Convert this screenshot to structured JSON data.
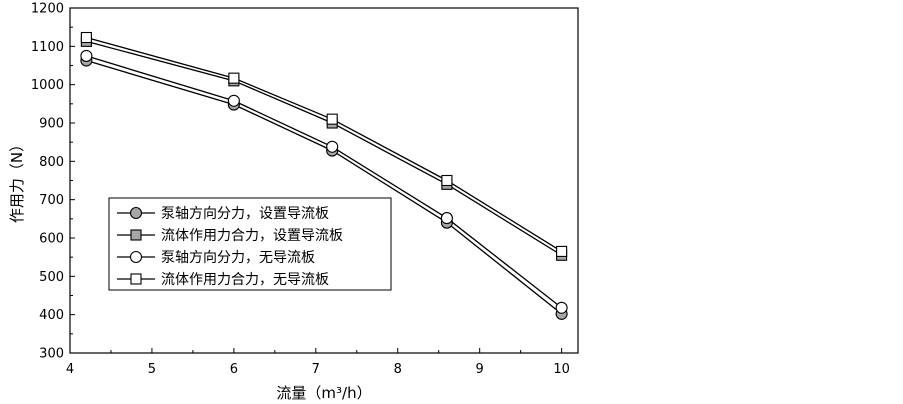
{
  "chart_data": {
    "type": "line",
    "xlabel": "流量（m³/h）",
    "ylabel": "作用力（N）",
    "xlim": [
      4,
      10.2
    ],
    "ylim": [
      300,
      1200
    ],
    "xticks": [
      4,
      5,
      6,
      7,
      8,
      9,
      10
    ],
    "yticks": [
      300,
      400,
      500,
      600,
      700,
      800,
      900,
      1000,
      1100,
      1200
    ],
    "grid": false,
    "legend_position": "lower-left",
    "x": [
      4.2,
      6.0,
      7.2,
      8.6,
      10.0
    ],
    "series": [
      {
        "name": "泵轴方向分力，设置导流板",
        "marker": "circle",
        "filled": true,
        "values": [
          1063,
          948,
          828,
          640,
          402
        ]
      },
      {
        "name": "流体作用力合力，设置导流板",
        "marker": "square",
        "filled": true,
        "values": [
          1113,
          1010,
          900,
          740,
          555
        ]
      },
      {
        "name": "泵轴方向分力，无导流板",
        "marker": "circle",
        "filled": false,
        "values": [
          1075,
          958,
          838,
          652,
          418
        ]
      },
      {
        "name": "流体作用力合力，无导流板",
        "marker": "square",
        "filled": false,
        "values": [
          1123,
          1017,
          910,
          750,
          565
        ]
      }
    ],
    "colors": {
      "line": "#000000",
      "marker_filled": "#a6a6a6",
      "marker_open": "#ffffff"
    }
  }
}
